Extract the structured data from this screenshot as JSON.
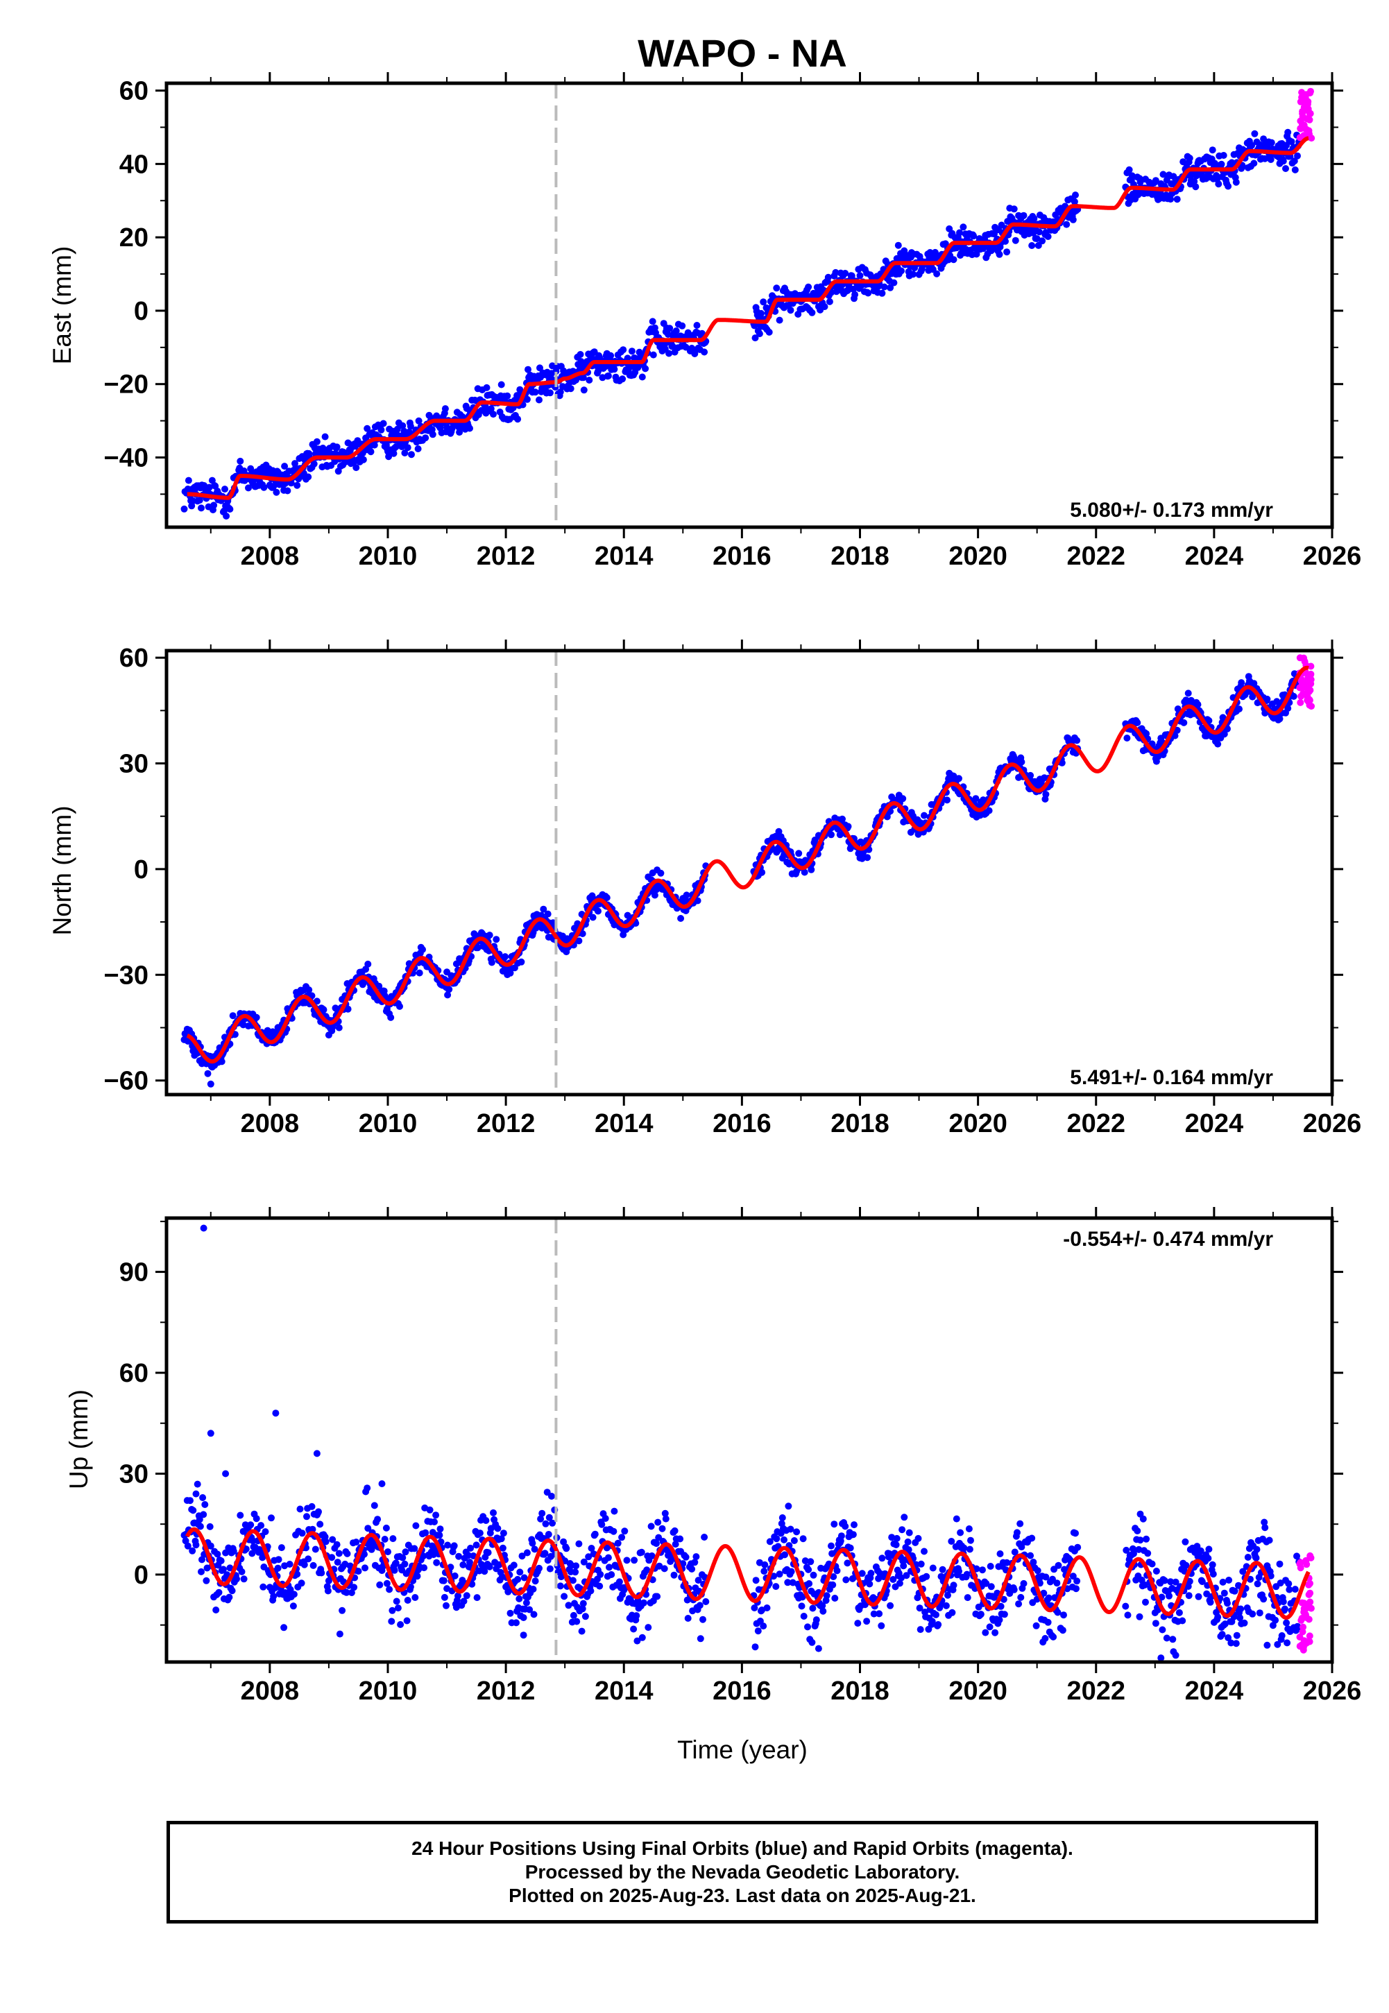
{
  "title": "WAPO - NA",
  "colors": {
    "final_orbits": "#0000ff",
    "rapid_orbits": "#ff00ff",
    "model": "#ff0000",
    "marker_line": "#bbbbbb",
    "frame": "#000000"
  },
  "footer": {
    "line1": "24 Hour Positions Using Final Orbits (blue) and Rapid Orbits (magenta).",
    "line2": "Processed by the Nevada Geodetic Laboratory.",
    "line3": "Plotted on 2025-Aug-23. Last data on 2025-Aug-21."
  },
  "chart_data": [
    {
      "type": "scatter",
      "panel": "east",
      "ylabel": "East (mm)",
      "xlabel": "",
      "xlim": [
        2006.25,
        2026.0
      ],
      "ylim": [
        -59,
        62
      ],
      "xticks": [
        2008,
        2010,
        2012,
        2014,
        2016,
        2018,
        2020,
        2022,
        2024,
        2026
      ],
      "yticks": [
        -40,
        -20,
        0,
        20,
        40,
        60
      ],
      "vertical_marker_x": 2012.85,
      "rate_annotation": "5.080+/- 0.173 mm/yr",
      "rate_position": "bottom-right",
      "trend_line": {
        "name": "model",
        "x": [
          2006.6,
          2007.3,
          2007.5,
          2008.3,
          2008.8,
          2009.3,
          2009.8,
          2010.3,
          2010.8,
          2011.3,
          2011.6,
          2012.2,
          2012.4,
          2012.85,
          2013.0,
          2013.3,
          2013.5,
          2014.3,
          2014.5,
          2015.3,
          2015.6,
          2016.4,
          2016.6,
          2017.3,
          2017.6,
          2018.3,
          2018.6,
          2019.3,
          2019.6,
          2020.3,
          2020.6,
          2021.3,
          2021.6,
          2022.3,
          2022.6,
          2023.3,
          2023.6,
          2024.3,
          2024.6,
          2025.3,
          2025.6
        ],
        "y": [
          -50,
          -51,
          -45,
          -46,
          -40,
          -40,
          -35,
          -35,
          -30,
          -30,
          -25,
          -25.5,
          -20,
          -19.5,
          -18.5,
          -17,
          -14,
          -14,
          -8,
          -8,
          -2.5,
          -3,
          3,
          3,
          8,
          8,
          13,
          13,
          18.5,
          18.5,
          23.5,
          23,
          28.5,
          28,
          33.5,
          33,
          38.5,
          38.5,
          43.5,
          43,
          47
        ]
      },
      "final_orbits": {
        "segments": [
          [
            2006.55,
            2015.4
          ],
          [
            2016.2,
            2021.7
          ],
          [
            2022.5,
            2025.45
          ]
        ],
        "noise_mm": 2.2,
        "outliers": []
      },
      "rapid_orbits": {
        "x_range": [
          2025.45,
          2025.65
        ],
        "y_range": [
          46,
          60
        ]
      }
    },
    {
      "type": "scatter",
      "panel": "north",
      "ylabel": "North (mm)",
      "xlabel": "",
      "xlim": [
        2006.25,
        2026.0
      ],
      "ylim": [
        -64,
        62
      ],
      "xticks": [
        2008,
        2010,
        2012,
        2014,
        2016,
        2018,
        2020,
        2022,
        2024,
        2026
      ],
      "yticks": [
        -60,
        -30,
        0,
        30,
        60
      ],
      "vertical_marker_x": 2012.85,
      "rate_annotation": "5.491+/- 0.164 mm/yr",
      "rate_position": "bottom-right",
      "model": {
        "t0": 2006.6,
        "y0": -52,
        "rate": 5.491,
        "annual_amplitude": 5,
        "annual_peak_phase": 0.55
      },
      "final_orbits": {
        "segments": [
          [
            2006.55,
            2015.4
          ],
          [
            2016.2,
            2021.7
          ],
          [
            2022.5,
            2025.45
          ]
        ],
        "noise_mm": 1.6,
        "outliers": [
          {
            "x": 2007.0,
            "y": -61
          }
        ]
      },
      "rapid_orbits": {
        "x_range": [
          2025.45,
          2025.65
        ],
        "y_range": [
          46,
          60
        ]
      }
    },
    {
      "type": "scatter",
      "panel": "up",
      "ylabel": "Up (mm)",
      "xlabel": "Time (year)",
      "xlim": [
        2006.25,
        2026.0
      ],
      "ylim": [
        -26,
        106
      ],
      "xticks": [
        2008,
        2010,
        2012,
        2014,
        2016,
        2018,
        2020,
        2022,
        2024,
        2026
      ],
      "yticks": [
        0,
        30,
        60,
        90
      ],
      "vertical_marker_x": 2012.85,
      "rate_annotation": "-0.554+/- 0.474 mm/yr",
      "rate_position": "top-right",
      "model": {
        "t0": 2006.6,
        "y0": 5.5,
        "rate": -0.554,
        "annual_amplitude": 8,
        "annual_peak_phase": 0.72
      },
      "final_orbits": {
        "segments": [
          [
            2006.55,
            2015.4
          ],
          [
            2016.2,
            2021.7
          ],
          [
            2022.5,
            2025.45
          ]
        ],
        "noise_mm": 6,
        "outliers": [
          {
            "x": 2006.88,
            "y": 103
          },
          {
            "x": 2008.1,
            "y": 48
          },
          {
            "x": 2007.0,
            "y": 42
          },
          {
            "x": 2008.8,
            "y": 36
          },
          {
            "x": 2007.25,
            "y": 30
          },
          {
            "x": 2012.3,
            "y": -18
          },
          {
            "x": 2023.35,
            "y": -24
          },
          {
            "x": 2024.9,
            "y": -21
          },
          {
            "x": 2017.3,
            "y": -22
          },
          {
            "x": 2006.75,
            "y": 24
          },
          {
            "x": 2009.9,
            "y": 27
          },
          {
            "x": 2022.75,
            "y": 18
          }
        ]
      },
      "rapid_orbits": {
        "x_range": [
          2025.45,
          2025.65
        ],
        "y_range": [
          -23,
          6
        ]
      }
    }
  ]
}
